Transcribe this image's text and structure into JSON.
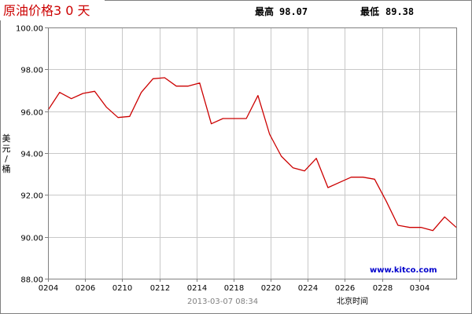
{
  "header": {
    "title": "原油价格3 0 天",
    "high_label": "最高",
    "high_value": "98.07",
    "low_label": "最低",
    "low_value": "89.38"
  },
  "watermark": "www.kitco.com",
  "footer": {
    "timestamp": "2013-03-07 08:34",
    "timezone_label": "北京时间"
  },
  "colors": {
    "title": "#cc0000",
    "line": "#cc0000",
    "watermark": "#0000cc",
    "grid": "#c8c8c8",
    "frame": "#808080"
  },
  "chart_data": {
    "type": "line",
    "title": "原油价格3 0 天",
    "ylabel": "美元/桶",
    "xlabel": "北京时间",
    "ylim": [
      88,
      100
    ],
    "yticks": [
      "100.00",
      "98.00",
      "96.00",
      "94.00",
      "92.00",
      "90.00",
      "88.00"
    ],
    "xticks": [
      "0204",
      "0206",
      "0210",
      "0212",
      "0214",
      "0218",
      "0220",
      "0224",
      "0226",
      "0228",
      "0304"
    ],
    "grid": true,
    "series": [
      {
        "values": [
          96.05,
          96.9,
          96.6,
          96.85,
          96.95,
          96.2,
          95.7,
          95.75,
          96.9,
          97.55,
          97.6,
          97.2,
          97.2,
          97.35,
          95.4,
          95.65,
          95.65,
          95.65,
          96.75,
          94.9,
          93.85,
          93.3,
          93.15,
          93.75,
          92.35,
          92.6,
          92.85,
          92.85,
          92.75,
          91.7,
          90.55,
          90.45,
          90.45,
          90.3,
          90.95,
          90.45
        ]
      }
    ]
  }
}
